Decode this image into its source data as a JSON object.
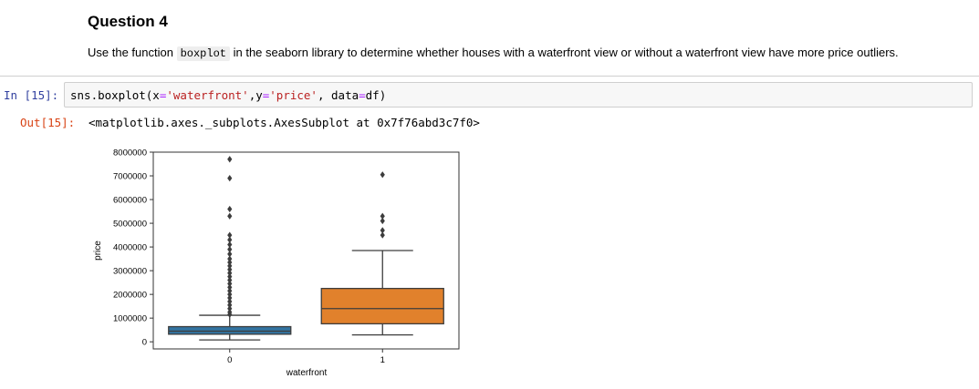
{
  "question": {
    "title": "Question 4",
    "text_before": "Use the function ",
    "code_word": "boxplot",
    "text_after": " in the seaborn library to determine whether houses with a waterfront view or without a waterfront view have more price outliers."
  },
  "input_cell": {
    "prompt": "In [15]:",
    "code": {
      "p1": "sns.boxplot(x",
      "eq1": "=",
      "s1": "'waterfront'",
      "p2": ",y",
      "eq2": "=",
      "s2": "'price'",
      "p3": ", data",
      "eq3": "=",
      "p4": "df)"
    }
  },
  "output_cell": {
    "prompt": "Out[15]:",
    "text": "<matplotlib.axes._subplots.AxesSubplot at 0x7f76abd3c7f0>"
  },
  "chart_data": {
    "type": "box",
    "xlabel": "waterfront",
    "ylabel": "price",
    "ylim": [
      -300000,
      8000000
    ],
    "yticks": [
      0,
      1000000,
      2000000,
      3000000,
      4000000,
      5000000,
      6000000,
      7000000,
      8000000
    ],
    "yticklabels": [
      "0",
      "1000000",
      "2000000",
      "3000000",
      "4000000",
      "5000000",
      "6000000",
      "7000000",
      "8000000"
    ],
    "categories": [
      "0",
      "1"
    ],
    "boxes": [
      {
        "category": "0",
        "color": "#3274a1",
        "q1": 320000,
        "median": 450000,
        "q3": 640000,
        "whisker_low": 80000,
        "whisker_high": 1120000,
        "outliers": [
          1150000,
          1250000,
          1400000,
          1550000,
          1700000,
          1850000,
          2000000,
          2150000,
          2300000,
          2450000,
          2600000,
          2750000,
          2900000,
          3050000,
          3200000,
          3350000,
          3500000,
          3700000,
          3900000,
          4100000,
          4300000,
          4500000,
          5300000,
          5600000,
          6900000,
          7700000
        ]
      },
      {
        "category": "1",
        "color": "#e1812c",
        "q1": 760000,
        "median": 1400000,
        "q3": 2250000,
        "whisker_low": 290000,
        "whisker_high": 3850000,
        "outliers": [
          4500000,
          4700000,
          5100000,
          5300000,
          7050000
        ]
      }
    ]
  }
}
